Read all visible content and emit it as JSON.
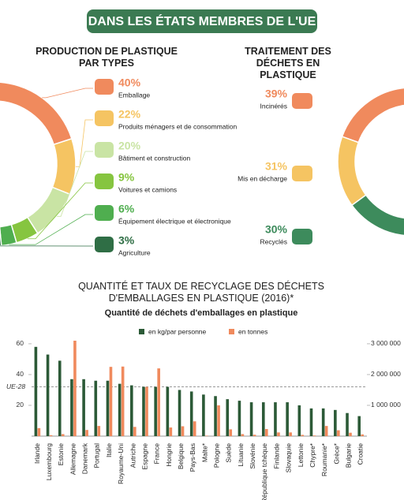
{
  "title": "DANS LES ÉTATS MEMBRES DE L'UE",
  "chart_data": [
    {
      "type": "pie",
      "title": "PRODUCTION DE PLASTIQUE PAR TYPES",
      "categories": [
        "Emballage",
        "Produits ménagers et de consommation",
        "Bâtiment et construction",
        "Voitures et camions",
        "Équipement électrique et électronique",
        "Agriculture"
      ],
      "values": [
        40,
        22,
        20,
        9,
        6,
        3
      ],
      "value_labels": [
        "40%",
        "22%",
        "20%",
        "9%",
        "6%",
        "3%"
      ],
      "colors": [
        "#f08a5d",
        "#f5c462",
        "#c9e4a4",
        "#86c540",
        "#4fae4f",
        "#2f6e45"
      ]
    },
    {
      "type": "pie",
      "title": "TRAITEMENT DES DÉCHETS EN PLASTIQUE",
      "categories": [
        "Incinérés",
        "Mis en décharge",
        "Recyclés"
      ],
      "values": [
        39,
        31,
        30
      ],
      "value_labels": [
        "39%",
        "31%",
        "30%"
      ],
      "colors": [
        "#f08a5d",
        "#f5c462",
        "#3d8b5c"
      ]
    },
    {
      "type": "bar",
      "title": "QUANTITÉ ET TAUX DE RECYCLAGE DES DÉCHETS D'EMBALLAGES EN PLASTIQUE (2016)*",
      "subtitle": "Quantité de déchets d'emballages en plastique",
      "categories": [
        "Irlande",
        "Luxembourg",
        "Estonie",
        "Allemagne",
        "Danemark",
        "Portugal",
        "Italie",
        "Royaume-Uni",
        "Autriche",
        "Espagne",
        "France",
        "Hongrie",
        "Belgique",
        "Pays-Bas",
        "Malte*",
        "Pologne",
        "Suède",
        "Lituanie",
        "Slovénie",
        "République tchèque",
        "Finlande",
        "Slovaquie",
        "Lettonie",
        "Chypre*",
        "Roumanie*",
        "Grèce*",
        "Bulgarie",
        "Croatie"
      ],
      "series": [
        {
          "name": "en kg/par personne",
          "color": "#2c5a37",
          "values": [
            58,
            53,
            49,
            37,
            37,
            36,
            36,
            34,
            33,
            32,
            32,
            32,
            30,
            29,
            27,
            26,
            24,
            23,
            22,
            22,
            22,
            22,
            20,
            18,
            18,
            17,
            15,
            13
          ]
        },
        {
          "name": "en tonnes",
          "color": "#f08a5d",
          "axis": "y2",
          "values": [
            260000,
            30000,
            65000,
            3100000,
            200000,
            330000,
            2250000,
            2260000,
            300000,
            1600000,
            2200000,
            280000,
            320000,
            480000,
            15000,
            1000000,
            220000,
            65000,
            45000,
            230000,
            120000,
            120000,
            40000,
            20000,
            330000,
            190000,
            110000,
            55000
          ]
        }
      ],
      "ylim": [
        0,
        62
      ],
      "yticks": [
        20,
        40,
        60
      ],
      "y2lim": [
        0,
        3100000
      ],
      "y2ticks": [
        {
          "value": 1000000,
          "label": "1 000 000"
        },
        {
          "value": 2000000,
          "label": "2 000 000"
        },
        {
          "value": 3000000,
          "label": "3 000 000"
        }
      ],
      "reference_line": {
        "label": "UE-28",
        "value": 32
      }
    }
  ]
}
